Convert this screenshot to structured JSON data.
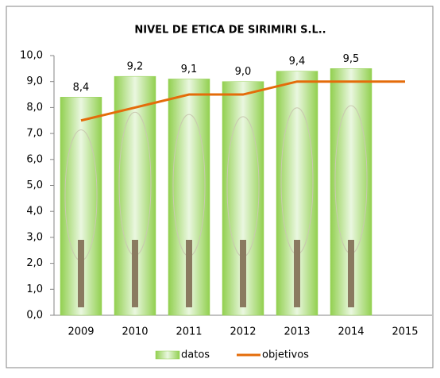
{
  "chart_data": {
    "type": "combo",
    "title": "NIVEL DE ETICA DE SIRIMIRI S.L..",
    "categories": [
      "2009",
      "2010",
      "2011",
      "2012",
      "2013",
      "2014",
      "2015"
    ],
    "series": [
      {
        "name": "datos",
        "type": "bar",
        "color": "#92d050",
        "values": [
          8.4,
          9.2,
          9.1,
          9.0,
          9.4,
          9.5,
          null
        ],
        "value_labels": [
          "8,4",
          "9,2",
          "9,1",
          "9,0",
          "9,4",
          "9,5",
          null
        ]
      },
      {
        "name": "objetivos",
        "type": "line",
        "color": "#e46c0a",
        "values": [
          7.5,
          8.0,
          8.5,
          8.5,
          9.0,
          9.0,
          9.0
        ]
      }
    ],
    "ylim": [
      0,
      10
    ],
    "yticks": [
      {
        "value": 0,
        "label": "0,0"
      },
      {
        "value": 1,
        "label": "1,0"
      },
      {
        "value": 2,
        "label": "2,0"
      },
      {
        "value": 3,
        "label": "3,0"
      },
      {
        "value": 4,
        "label": "4,0"
      },
      {
        "value": 5,
        "label": "5,0"
      },
      {
        "value": 6,
        "label": "6,0"
      },
      {
        "value": 7,
        "label": "7,0"
      },
      {
        "value": 8,
        "label": "8,0"
      },
      {
        "value": 9,
        "label": "9,0"
      },
      {
        "value": 10,
        "label": "10,0"
      }
    ],
    "legend": "bottom"
  }
}
